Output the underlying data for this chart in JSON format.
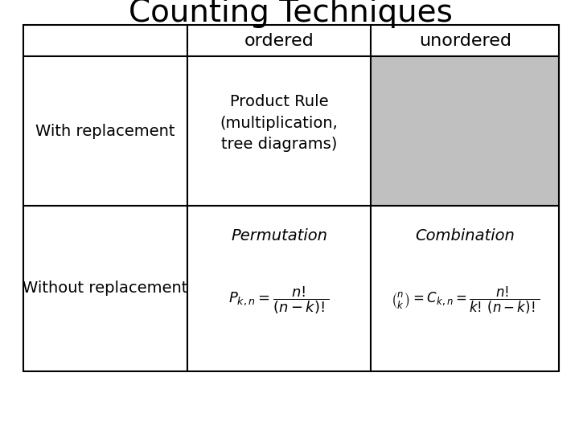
{
  "title": "Counting Techniques",
  "title_fontsize": 28,
  "background_color": "#ffffff",
  "gray_color": "#c0c0c0",
  "border_color": "#000000",
  "col1_label": "ordered",
  "col2_label": "unordered",
  "row1_label": "With replacement",
  "row2_label": "Without replacement",
  "cell_ordered_with": "Product Rule\n(multiplication,\ntree diagrams)",
  "cell_unordered_with": "",
  "cell_ordered_without_title": "Permutation",
  "cell_unordered_without_title": "Combination",
  "text_fontsize": 14,
  "header_fontsize": 16
}
